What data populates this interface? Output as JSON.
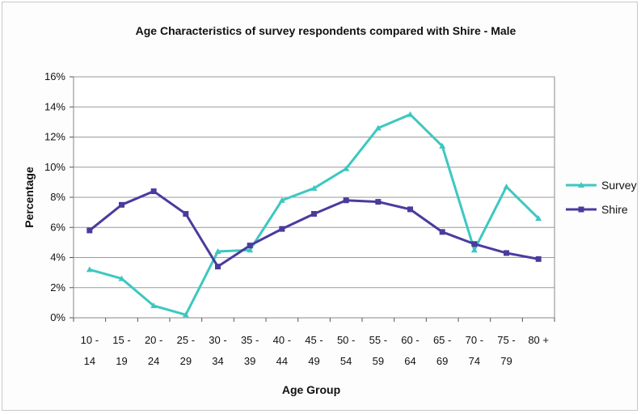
{
  "chart_data": {
    "type": "line",
    "title": "Age Characteristics of survey respondents compared with Shire - Male",
    "xlabel": "Age Group",
    "ylabel": "Percentage",
    "categories": [
      [
        "10 -",
        "14"
      ],
      [
        "15 -",
        "19"
      ],
      [
        "20 -",
        "24"
      ],
      [
        "25 -",
        "29"
      ],
      [
        "30 -",
        "34"
      ],
      [
        "35 -",
        "39"
      ],
      [
        "40 -",
        "44"
      ],
      [
        "45 -",
        "49"
      ],
      [
        "50 -",
        "54"
      ],
      [
        "55 -",
        "59"
      ],
      [
        "60 -",
        "64"
      ],
      [
        "65 -",
        "69"
      ],
      [
        "70 -",
        "74"
      ],
      [
        "75 -",
        "79"
      ],
      [
        "80 +",
        ""
      ]
    ],
    "ylim": [
      0,
      16
    ],
    "yticks": [
      0,
      2,
      4,
      6,
      8,
      10,
      12,
      14,
      16
    ],
    "ytick_labels": [
      "0%",
      "2%",
      "4%",
      "6%",
      "8%",
      "10%",
      "12%",
      "14%",
      "16%"
    ],
    "grid": "horizontal",
    "legend_position": "right",
    "series": [
      {
        "name": "Survey",
        "color": "#3cc8c0",
        "marker": "triangle",
        "values": [
          3.2,
          2.6,
          0.8,
          0.2,
          4.4,
          4.5,
          7.8,
          8.6,
          9.9,
          12.6,
          13.5,
          11.4,
          4.5,
          8.7,
          6.6
        ]
      },
      {
        "name": "Shire",
        "color": "#4a3b9e",
        "marker": "square",
        "values": [
          5.8,
          7.5,
          8.4,
          6.9,
          3.4,
          4.8,
          5.9,
          6.9,
          7.8,
          7.7,
          7.2,
          5.7,
          4.9,
          4.3,
          3.9
        ]
      }
    ]
  }
}
